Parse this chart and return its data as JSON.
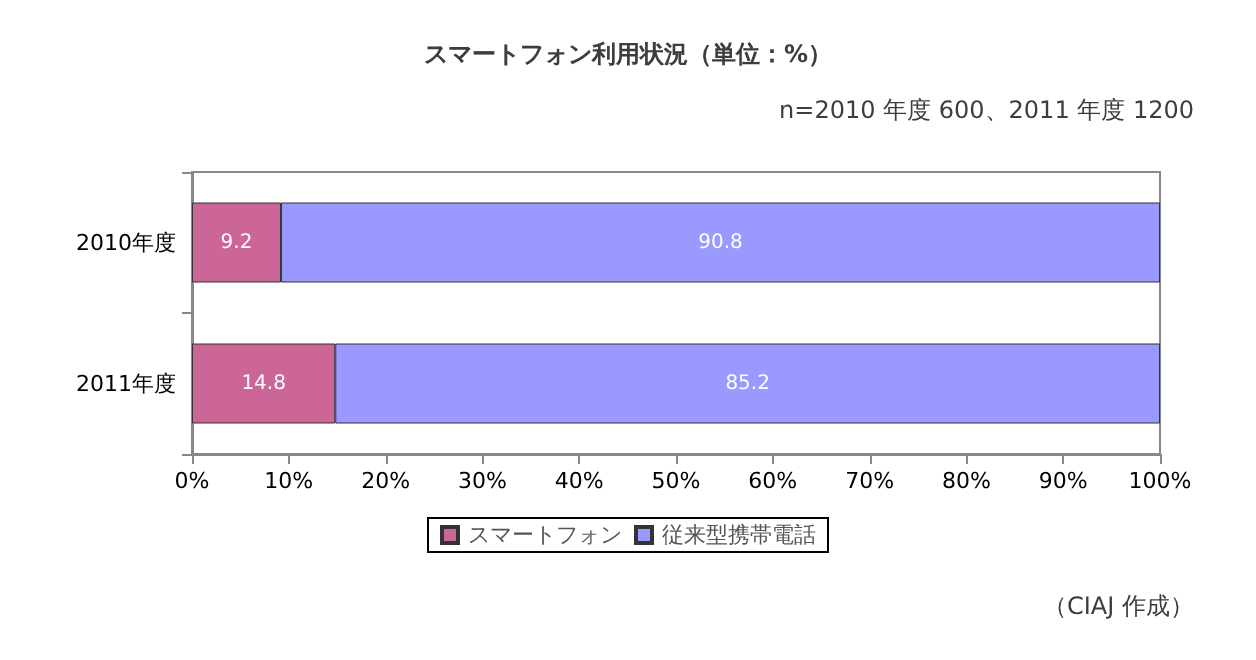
{
  "chart_data": {
    "type": "bar",
    "orientation": "horizontal",
    "stacked": true,
    "title": "スマートフォン利用状況（単位：%）",
    "subtitle": "n=2010 年度 600、2011 年度 1200",
    "annotations": [
      "（CIAJ 作成）"
    ],
    "categories": [
      "2010年度",
      "2011年度"
    ],
    "series": [
      {
        "name": "スマートフォン",
        "color": "#cc6699",
        "values": [
          9.2,
          14.8
        ]
      },
      {
        "name": "従来型携帯電話",
        "color": "#9999ff",
        "values": [
          90.8,
          85.2
        ]
      }
    ],
    "xlim": [
      0,
      100
    ],
    "xticks": [
      {
        "value": 0,
        "label": "0%"
      },
      {
        "value": 10,
        "label": "10%"
      },
      {
        "value": 20,
        "label": "20%"
      },
      {
        "value": 30,
        "label": "30%"
      },
      {
        "value": 40,
        "label": "40%"
      },
      {
        "value": 50,
        "label": "50%"
      },
      {
        "value": 60,
        "label": "60%"
      },
      {
        "value": 70,
        "label": "70%"
      },
      {
        "value": 80,
        "label": "80%"
      },
      {
        "value": 90,
        "label": "90%"
      },
      {
        "value": 100,
        "label": "100%"
      }
    ],
    "data_labels": true,
    "grid": false,
    "legend": "bottom"
  }
}
